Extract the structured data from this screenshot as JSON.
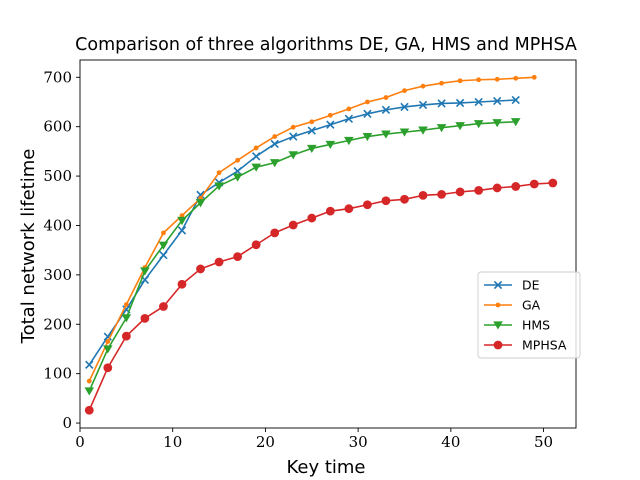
{
  "chart_data": {
    "type": "line",
    "title": "Comparison of three algorithms DE, GA, HMS and MPHSA",
    "xlabel": "Key time",
    "ylabel": "Total network lifetime",
    "xlim": [
      0,
      53.5
    ],
    "ylim": [
      -10,
      735
    ],
    "xticks": [
      0,
      10,
      20,
      30,
      40,
      50
    ],
    "yticks": [
      0,
      100,
      200,
      300,
      400,
      500,
      600,
      700
    ],
    "grid": false,
    "legend_position": "lower-right",
    "series": [
      {
        "name": "DE",
        "color": "#1f77b4",
        "marker": "x",
        "x": [
          1,
          3,
          5,
          7,
          9,
          11,
          13,
          15,
          17,
          19,
          21,
          23,
          25,
          27,
          29,
          31,
          33,
          35,
          37,
          39,
          41,
          43,
          45,
          47
        ],
        "y": [
          118,
          175,
          230,
          290,
          340,
          390,
          462,
          487,
          510,
          540,
          565,
          580,
          592,
          604,
          616,
          626,
          634,
          640,
          644,
          647,
          648,
          650,
          652,
          654
        ]
      },
      {
        "name": "GA",
        "color": "#ff7f0e",
        "marker": "dot",
        "x": [
          1,
          3,
          5,
          7,
          9,
          11,
          13,
          15,
          17,
          19,
          21,
          23,
          25,
          27,
          29,
          31,
          33,
          35,
          37,
          39,
          41,
          43,
          45,
          47,
          49
        ],
        "y": [
          85,
          165,
          240,
          315,
          385,
          420,
          455,
          507,
          532,
          557,
          580,
          599,
          610,
          623,
          636,
          650,
          659,
          673,
          682,
          688,
          693,
          695,
          696,
          698,
          700
        ]
      },
      {
        "name": "HMS",
        "color": "#2ca02c",
        "marker": "triangle-down",
        "x": [
          1,
          3,
          5,
          7,
          9,
          11,
          13,
          15,
          17,
          19,
          21,
          23,
          25,
          27,
          29,
          31,
          33,
          35,
          37,
          39,
          41,
          43,
          45,
          47
        ],
        "y": [
          65,
          150,
          213,
          308,
          360,
          410,
          446,
          480,
          498,
          518,
          527,
          543,
          556,
          564,
          572,
          580,
          585,
          589,
          593,
          598,
          602,
          606,
          608,
          610
        ]
      },
      {
        "name": "MPHSA",
        "color": "#d62728",
        "marker": "circle",
        "x": [
          1,
          3,
          5,
          7,
          9,
          11,
          13,
          15,
          17,
          19,
          21,
          23,
          25,
          27,
          29,
          31,
          33,
          35,
          37,
          39,
          41,
          43,
          45,
          47,
          49,
          51
        ],
        "y": [
          26,
          112,
          176,
          212,
          236,
          281,
          312,
          326,
          337,
          361,
          385,
          401,
          415,
          429,
          434,
          442,
          450,
          453,
          461,
          463,
          468,
          471,
          476,
          479,
          484,
          486
        ]
      }
    ]
  }
}
